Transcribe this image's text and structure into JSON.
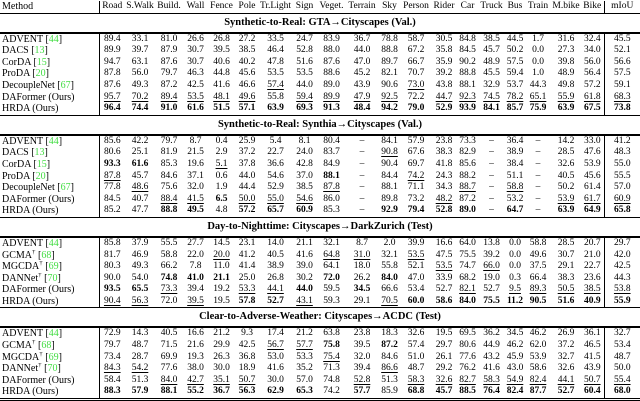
{
  "colors": {
    "citation_green": "#44dd44",
    "text": "#000000",
    "background": "#ffffff"
  },
  "header": {
    "method_label": "Method",
    "class_columns": [
      "Road",
      "S.Walk",
      "Build.",
      "Wall",
      "Fence",
      "Pole",
      "Tr.Light",
      "Sign",
      "Veget.",
      "Terrain",
      "Sky",
      "Person",
      "Rider",
      "Car",
      "Truck",
      "Bus",
      "Train",
      "M.bike",
      "Bike"
    ],
    "miou_label": "mIoU"
  },
  "sections": [
    {
      "title": "Synthetic-to-Real: GTA→Cityscapes (Val.)",
      "rows": [
        {
          "method": "ADVENT",
          "cite": "44",
          "dagger": false,
          "ours": false,
          "values": [
            "89.4",
            "33.1",
            "81.0",
            "26.6",
            "26.8",
            "27.2",
            "33.5",
            "24.7",
            "83.9",
            "36.7",
            "78.8",
            "58.7",
            "30.5",
            "84.8",
            "38.5",
            "44.5",
            "1.7",
            "31.6",
            "32.4",
            "45.5"
          ],
          "bold": [],
          "underline": []
        },
        {
          "method": "DACS",
          "cite": "13",
          "dagger": false,
          "ours": false,
          "values": [
            "89.9",
            "39.7",
            "87.9",
            "30.7",
            "39.5",
            "38.5",
            "46.4",
            "52.8",
            "88.0",
            "44.0",
            "88.8",
            "67.2",
            "35.8",
            "84.5",
            "45.7",
            "50.2",
            "0.0",
            "27.3",
            "34.0",
            "52.1"
          ],
          "bold": [],
          "underline": []
        },
        {
          "method": "CorDA",
          "cite": "15",
          "dagger": false,
          "ours": false,
          "values": [
            "94.7",
            "63.1",
            "87.6",
            "30.7",
            "40.6",
            "40.2",
            "47.8",
            "51.6",
            "87.6",
            "47.0",
            "89.7",
            "66.7",
            "35.9",
            "90.2",
            "48.9",
            "57.5",
            "0.0",
            "39.8",
            "56.0",
            "56.6"
          ],
          "bold": [],
          "underline": []
        },
        {
          "method": "ProDA",
          "cite": "20",
          "dagger": false,
          "ours": false,
          "values": [
            "87.8",
            "56.0",
            "79.7",
            "46.3",
            "44.8",
            "45.6",
            "53.5",
            "53.5",
            "88.6",
            "45.2",
            "82.1",
            "70.7",
            "39.2",
            "88.8",
            "45.5",
            "59.4",
            "1.0",
            "48.9",
            "56.4",
            "57.5"
          ],
          "bold": [],
          "underline": []
        },
        {
          "method": "DecoupleNet",
          "cite": "67",
          "dagger": false,
          "ours": false,
          "values": [
            "87.6",
            "49.3",
            "87.2",
            "42.5",
            "41.6",
            "46.6",
            "57.4",
            "44.0",
            "89.0",
            "43.9",
            "90.6",
            "73.0",
            "43.8",
            "88.1",
            "32.9",
            "53.7",
            "44.3",
            "49.8",
            "57.2",
            "59.1"
          ],
          "bold": [],
          "underline": [
            6,
            11
          ]
        },
        {
          "method": "DAFormer",
          "cite": null,
          "dagger": false,
          "ours": true,
          "values": [
            "95.7",
            "70.2",
            "89.4",
            "53.5",
            "48.1",
            "49.6",
            "55.8",
            "59.4",
            "89.9",
            "47.9",
            "92.5",
            "72.2",
            "44.7",
            "92.3",
            "74.5",
            "78.2",
            "65.1",
            "55.9",
            "61.8",
            "68.3"
          ],
          "bold": [],
          "underline": [
            0,
            1,
            2,
            3,
            4,
            5,
            7,
            8,
            9,
            10,
            12,
            13,
            14,
            15,
            16,
            17,
            18,
            19
          ]
        },
        {
          "method": "HRDA",
          "cite": null,
          "dagger": false,
          "ours": true,
          "values": [
            "96.4",
            "74.4",
            "91.0",
            "61.6",
            "51.5",
            "57.1",
            "63.9",
            "69.3",
            "91.3",
            "48.4",
            "94.2",
            "79.0",
            "52.9",
            "93.9",
            "84.1",
            "85.7",
            "75.9",
            "63.9",
            "67.5",
            "73.8"
          ],
          "bold": [
            0,
            1,
            2,
            3,
            4,
            5,
            6,
            7,
            8,
            9,
            10,
            11,
            12,
            13,
            14,
            15,
            16,
            17,
            18,
            19
          ],
          "underline": []
        }
      ]
    },
    {
      "title": "Synthetic-to-Real: Synthia→Cityscapes (Val.)",
      "rows": [
        {
          "method": "ADVENT",
          "cite": "44",
          "dagger": false,
          "ours": false,
          "values": [
            "85.6",
            "42.2",
            "79.7",
            "8.7",
            "0.4",
            "25.9",
            "5.4",
            "8.1",
            "80.4",
            "–",
            "84.1",
            "57.9",
            "23.8",
            "73.3",
            "–",
            "36.4",
            "–",
            "14.2",
            "33.0",
            "41.2"
          ],
          "bold": [],
          "underline": []
        },
        {
          "method": "DACS",
          "cite": "13",
          "dagger": false,
          "ours": false,
          "values": [
            "80.6",
            "25.1",
            "81.9",
            "21.5",
            "2.9",
            "37.2",
            "22.7",
            "24.0",
            "83.7",
            "–",
            "90.8",
            "67.6",
            "38.3",
            "82.9",
            "–",
            "38.9",
            "–",
            "28.5",
            "47.6",
            "48.3"
          ],
          "bold": [],
          "underline": [
            10
          ]
        },
        {
          "method": "CorDA",
          "cite": "15",
          "dagger": false,
          "ours": false,
          "values": [
            "93.3",
            "61.6",
            "85.3",
            "19.6",
            "5.1",
            "37.8",
            "36.6",
            "42.8",
            "84.9",
            "–",
            "90.4",
            "69.7",
            "41.8",
            "85.6",
            "–",
            "38.4",
            "–",
            "32.6",
            "53.9",
            "55.0"
          ],
          "bold": [
            0,
            1
          ],
          "underline": [
            4
          ]
        },
        {
          "method": "ProDA",
          "cite": "20",
          "dagger": false,
          "ours": false,
          "values": [
            "87.8",
            "45.7",
            "84.6",
            "37.1",
            "0.6",
            "44.0",
            "54.6",
            "37.0",
            "88.1",
            "–",
            "84.4",
            "74.2",
            "24.3",
            "88.2",
            "–",
            "51.1",
            "–",
            "40.5",
            "45.6",
            "55.5"
          ],
          "bold": [
            8
          ],
          "underline": [
            0,
            11
          ]
        },
        {
          "method": "DecoupleNet",
          "cite": "67",
          "dagger": false,
          "ours": false,
          "values": [
            "77.8",
            "48.6",
            "75.6",
            "32.0",
            "1.9",
            "44.4",
            "52.9",
            "38.5",
            "87.8",
            "–",
            "88.1",
            "71.1",
            "34.3",
            "88.7",
            "–",
            "58.8",
            "–",
            "50.2",
            "61.4",
            "57.0"
          ],
          "bold": [],
          "underline": [
            1,
            8,
            13,
            15
          ]
        },
        {
          "method": "DAFormer",
          "cite": null,
          "dagger": false,
          "ours": true,
          "values": [
            "84.5",
            "40.7",
            "88.4",
            "41.5",
            "6.5",
            "50.0",
            "55.0",
            "54.6",
            "86.0",
            "–",
            "89.8",
            "73.2",
            "48.2",
            "87.2",
            "–",
            "53.2",
            "–",
            "53.9",
            "61.7",
            "60.9"
          ],
          "bold": [
            4
          ],
          "underline": [
            2,
            3,
            5,
            6,
            7,
            12,
            17,
            18,
            19
          ]
        },
        {
          "method": "HRDA",
          "cite": null,
          "dagger": false,
          "ours": true,
          "values": [
            "85.2",
            "47.7",
            "88.8",
            "49.5",
            "4.8",
            "57.2",
            "65.7",
            "60.9",
            "85.3",
            "–",
            "92.9",
            "79.4",
            "52.8",
            "89.0",
            "–",
            "64.7",
            "–",
            "63.9",
            "64.9",
            "65.8"
          ],
          "bold": [
            2,
            3,
            5,
            6,
            7,
            10,
            11,
            12,
            13,
            15,
            17,
            18,
            19
          ],
          "underline": []
        }
      ]
    },
    {
      "title": "Day-to-Nighttime: Cityscapes→DarkZurich (Test)",
      "rows": [
        {
          "method": "ADVENT",
          "cite": "44",
          "dagger": false,
          "ours": false,
          "values": [
            "85.8",
            "37.9",
            "55.5",
            "27.7",
            "14.5",
            "23.1",
            "14.0",
            "21.1",
            "32.1",
            "8.7",
            "2.0",
            "39.9",
            "16.6",
            "64.0",
            "13.8",
            "0.0",
            "58.8",
            "28.5",
            "20.7",
            "29.7"
          ],
          "bold": [],
          "underline": []
        },
        {
          "method": "GCMA",
          "cite": "68",
          "dagger": true,
          "ours": false,
          "values": [
            "81.7",
            "46.9",
            "58.8",
            "22.0",
            "20.0",
            "41.2",
            "40.5",
            "41.6",
            "64.8",
            "31.0",
            "32.1",
            "53.5",
            "47.5",
            "75.5",
            "39.2",
            "0.0",
            "49.6",
            "30.7",
            "21.0",
            "42.0"
          ],
          "bold": [],
          "underline": [
            4,
            8,
            9,
            11
          ]
        },
        {
          "method": "MGCDA",
          "cite": "69",
          "dagger": true,
          "ours": false,
          "values": [
            "80.3",
            "49.3",
            "66.2",
            "7.8",
            "11.0",
            "41.4",
            "38.9",
            "39.0",
            "64.1",
            "18.0",
            "55.8",
            "52.1",
            "53.5",
            "74.7",
            "66.0",
            "0.0",
            "37.5",
            "29.1",
            "22.7",
            "42.5"
          ],
          "bold": [],
          "underline": [
            12,
            14
          ]
        },
        {
          "method": "DANNet",
          "cite": "70",
          "dagger": true,
          "ours": false,
          "values": [
            "90.0",
            "54.0",
            "74.8",
            "41.0",
            "21.1",
            "25.0",
            "26.8",
            "30.2",
            "72.0",
            "26.2",
            "84.0",
            "47.0",
            "33.9",
            "68.2",
            "19.0",
            "0.3",
            "66.4",
            "38.3",
            "23.6",
            "44.3"
          ],
          "bold": [
            2,
            3,
            4,
            8,
            10
          ],
          "underline": []
        },
        {
          "method": "DAFormer",
          "cite": null,
          "dagger": false,
          "ours": true,
          "values": [
            "93.5",
            "65.5",
            "73.3",
            "39.4",
            "19.2",
            "53.3",
            "44.1",
            "44.0",
            "59.5",
            "34.5",
            "66.6",
            "53.4",
            "52.7",
            "82.1",
            "52.7",
            "9.5",
            "89.3",
            "50.5",
            "38.5",
            "53.8"
          ],
          "bold": [
            0,
            1,
            7,
            9
          ],
          "underline": [
            2,
            5,
            6,
            13,
            15,
            16,
            17,
            18,
            19
          ]
        },
        {
          "method": "HRDA",
          "cite": null,
          "dagger": false,
          "ours": true,
          "values": [
            "90.4",
            "56.3",
            "72.0",
            "39.5",
            "19.5",
            "57.8",
            "52.7",
            "43.1",
            "59.3",
            "29.1",
            "70.5",
            "60.0",
            "58.6",
            "84.0",
            "75.5",
            "11.2",
            "90.5",
            "51.6",
            "40.9",
            "55.9"
          ],
          "bold": [
            5,
            6,
            11,
            12,
            13,
            14,
            15,
            16,
            17,
            18,
            19
          ],
          "underline": [
            0,
            1,
            3,
            7,
            10
          ]
        }
      ]
    },
    {
      "title": "Clear-to-Adverse-Weather: Cityscapes→ACDC (Test)",
      "rows": [
        {
          "method": "ADVENT",
          "cite": "44",
          "dagger": false,
          "ours": false,
          "values": [
            "72.9",
            "14.3",
            "40.5",
            "16.6",
            "21.2",
            "9.3",
            "17.4",
            "21.2",
            "63.8",
            "23.8",
            "18.3",
            "32.6",
            "19.5",
            "69.5",
            "36.2",
            "34.5",
            "46.2",
            "26.9",
            "36.1",
            "32.7"
          ],
          "bold": [],
          "underline": []
        },
        {
          "method": "GCMA",
          "cite": "68",
          "dagger": true,
          "ours": false,
          "values": [
            "79.7",
            "48.7",
            "71.5",
            "21.6",
            "29.9",
            "42.5",
            "56.7",
            "57.7",
            "75.8",
            "39.5",
            "87.2",
            "57.4",
            "29.7",
            "80.6",
            "44.9",
            "46.2",
            "62.0",
            "37.2",
            "46.5",
            "53.4"
          ],
          "bold": [
            8,
            10
          ],
          "underline": [
            6,
            7
          ]
        },
        {
          "method": "MGCDA",
          "cite": "69",
          "dagger": true,
          "ours": false,
          "values": [
            "73.4",
            "28.7",
            "69.9",
            "19.3",
            "26.3",
            "36.8",
            "53.0",
            "53.3",
            "75.4",
            "32.0",
            "84.6",
            "51.0",
            "26.1",
            "77.6",
            "43.2",
            "45.9",
            "53.9",
            "32.7",
            "41.5",
            "48.7"
          ],
          "bold": [],
          "underline": [
            8
          ]
        },
        {
          "method": "DANNet",
          "cite": "70",
          "dagger": true,
          "ours": false,
          "values": [
            "84.3",
            "54.2",
            "77.6",
            "38.0",
            "30.0",
            "18.9",
            "41.6",
            "35.2",
            "71.3",
            "39.4",
            "86.6",
            "48.7",
            "29.2",
            "76.2",
            "41.6",
            "43.0",
            "58.6",
            "32.6",
            "43.9",
            "50.0"
          ],
          "bold": [],
          "underline": [
            0,
            1,
            10
          ]
        },
        {
          "method": "DAFormer",
          "cite": null,
          "dagger": false,
          "ours": true,
          "values": [
            "58.4",
            "51.3",
            "84.0",
            "42.7",
            "35.1",
            "50.7",
            "30.0",
            "57.0",
            "74.8",
            "52.8",
            "51.3",
            "58.3",
            "32.6",
            "82.7",
            "58.3",
            "54.9",
            "82.4",
            "44.1",
            "50.7",
            "55.4"
          ],
          "bold": [],
          "underline": [
            2,
            3,
            4,
            5,
            9,
            11,
            12,
            13,
            14,
            15,
            16,
            17,
            18,
            19
          ]
        },
        {
          "method": "HRDA",
          "cite": null,
          "dagger": false,
          "ours": true,
          "values": [
            "88.3",
            "57.9",
            "88.1",
            "55.2",
            "36.7",
            "56.3",
            "62.9",
            "65.3",
            "74.2",
            "57.7",
            "85.9",
            "68.8",
            "45.7",
            "88.5",
            "76.4",
            "82.4",
            "87.7",
            "52.7",
            "60.4",
            "68.0"
          ],
          "bold": [
            0,
            1,
            2,
            3,
            4,
            5,
            6,
            7,
            9,
            11,
            12,
            13,
            14,
            15,
            16,
            17,
            18,
            19
          ],
          "underline": []
        }
      ]
    }
  ],
  "labels": {
    "ours_suffix": " (Ours)",
    "dagger": "†"
  }
}
